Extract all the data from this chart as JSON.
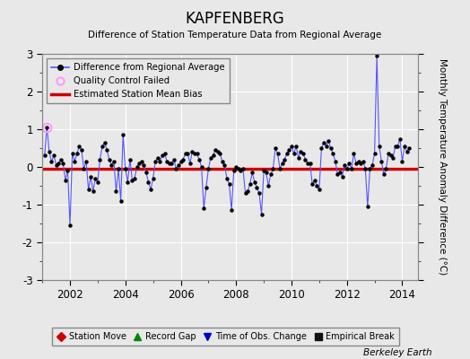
{
  "title": "KAPFENBERG",
  "subtitle": "Difference of Station Temperature Data from Regional Average",
  "ylabel": "Monthly Temperature Anomaly Difference (°C)",
  "xlabel_note": "Berkeley Earth",
  "xlim": [
    2001.0,
    2014.58
  ],
  "ylim": [
    -3,
    3
  ],
  "yticks": [
    -3,
    -2,
    -1,
    0,
    1,
    2,
    3
  ],
  "xticks": [
    2002,
    2004,
    2006,
    2008,
    2010,
    2012,
    2014
  ],
  "bias_value": -0.04,
  "background_color": "#e8e8e8",
  "plot_bg_color": "#e8e8e8",
  "line_color": "#5555ff",
  "bias_color": "#cc0000",
  "qc_color": "#ff99ff",
  "times": [
    2001.083,
    2001.167,
    2001.25,
    2001.333,
    2001.417,
    2001.5,
    2001.583,
    2001.667,
    2001.75,
    2001.833,
    2001.917,
    2002.0,
    2002.083,
    2002.167,
    2002.25,
    2002.333,
    2002.417,
    2002.5,
    2002.583,
    2002.667,
    2002.75,
    2002.833,
    2002.917,
    2003.0,
    2003.083,
    2003.167,
    2003.25,
    2003.333,
    2003.417,
    2003.5,
    2003.583,
    2003.667,
    2003.75,
    2003.833,
    2003.917,
    2004.0,
    2004.083,
    2004.167,
    2004.25,
    2004.333,
    2004.417,
    2004.5,
    2004.583,
    2004.667,
    2004.75,
    2004.833,
    2004.917,
    2005.0,
    2005.083,
    2005.167,
    2005.25,
    2005.333,
    2005.417,
    2005.5,
    2005.583,
    2005.667,
    2005.75,
    2005.833,
    2005.917,
    2006.0,
    2006.083,
    2006.167,
    2006.25,
    2006.333,
    2006.417,
    2006.5,
    2006.583,
    2006.667,
    2006.75,
    2006.833,
    2006.917,
    2007.0,
    2007.083,
    2007.167,
    2007.25,
    2007.333,
    2007.417,
    2007.5,
    2007.583,
    2007.667,
    2007.75,
    2007.833,
    2007.917,
    2008.0,
    2008.083,
    2008.167,
    2008.25,
    2008.333,
    2008.417,
    2008.5,
    2008.583,
    2008.667,
    2008.75,
    2008.833,
    2008.917,
    2009.0,
    2009.083,
    2009.167,
    2009.25,
    2009.333,
    2009.417,
    2009.5,
    2009.583,
    2009.667,
    2009.75,
    2009.833,
    2009.917,
    2010.0,
    2010.083,
    2010.167,
    2010.25,
    2010.333,
    2010.417,
    2010.5,
    2010.583,
    2010.667,
    2010.75,
    2010.833,
    2010.917,
    2011.0,
    2011.083,
    2011.167,
    2011.25,
    2011.333,
    2011.417,
    2011.5,
    2011.583,
    2011.667,
    2011.75,
    2011.833,
    2011.917,
    2012.0,
    2012.083,
    2012.167,
    2012.25,
    2012.333,
    2012.417,
    2012.5,
    2012.583,
    2012.667,
    2012.75,
    2012.833,
    2012.917,
    2013.0,
    2013.083,
    2013.167,
    2013.25,
    2013.333,
    2013.417,
    2013.5,
    2013.583,
    2013.667,
    2013.75,
    2013.833,
    2013.917,
    2014.0,
    2014.083,
    2014.167,
    2014.25
  ],
  "values": [
    0.3,
    1.05,
    0.4,
    0.15,
    0.3,
    0.05,
    0.1,
    0.2,
    0.1,
    -0.35,
    -0.1,
    -1.55,
    0.35,
    0.15,
    0.35,
    0.55,
    0.45,
    -0.05,
    0.15,
    -0.6,
    -0.25,
    -0.65,
    -0.3,
    -0.4,
    0.2,
    0.55,
    0.65,
    0.45,
    0.2,
    0.05,
    0.15,
    -0.65,
    -0.05,
    -0.9,
    0.85,
    -0.05,
    -0.4,
    0.2,
    -0.35,
    -0.3,
    0.0,
    0.1,
    0.15,
    0.05,
    -0.15,
    -0.4,
    -0.6,
    -0.3,
    0.15,
    0.25,
    0.15,
    0.3,
    0.35,
    0.15,
    0.1,
    0.1,
    0.2,
    -0.05,
    0.05,
    0.15,
    0.2,
    0.35,
    0.35,
    0.1,
    0.4,
    0.35,
    0.35,
    0.2,
    0.0,
    -1.1,
    -0.55,
    -0.05,
    0.25,
    0.3,
    0.45,
    0.4,
    0.35,
    0.15,
    0.05,
    -0.3,
    -0.45,
    -1.15,
    -0.1,
    0.0,
    -0.05,
    -0.1,
    -0.05,
    -0.7,
    -0.65,
    -0.45,
    -0.15,
    -0.4,
    -0.55,
    -0.7,
    -1.25,
    -0.1,
    -0.15,
    -0.5,
    -0.2,
    -0.05,
    0.5,
    0.35,
    -0.05,
    0.1,
    0.2,
    0.35,
    0.45,
    0.55,
    0.35,
    0.55,
    0.25,
    0.4,
    0.35,
    0.2,
    0.1,
    0.1,
    -0.45,
    -0.35,
    -0.5,
    -0.6,
    0.5,
    0.65,
    0.55,
    0.7,
    0.5,
    0.35,
    0.15,
    -0.2,
    -0.15,
    -0.25,
    0.05,
    -0.05,
    0.1,
    -0.05,
    0.35,
    0.1,
    0.15,
    0.1,
    0.15,
    -0.05,
    -1.05,
    -0.05,
    0.05,
    0.35,
    2.95,
    0.55,
    0.15,
    -0.2,
    -0.05,
    0.35,
    0.3,
    0.25,
    0.55,
    0.55,
    0.75,
    0.15,
    0.55,
    0.4,
    0.5
  ],
  "qc_failed_times": [
    2001.167
  ],
  "qc_failed_values": [
    1.05
  ],
  "legend1_labels": [
    "Difference from Regional Average",
    "Quality Control Failed",
    "Estimated Station Mean Bias"
  ],
  "legend2_items": [
    {
      "label": "Station Move",
      "color": "#cc0000",
      "marker": "D"
    },
    {
      "label": "Record Gap",
      "color": "#008800",
      "marker": "^"
    },
    {
      "label": "Time of Obs. Change",
      "color": "#0000cc",
      "marker": "v"
    },
    {
      "label": "Empirical Break",
      "color": "#111111",
      "marker": "s"
    }
  ]
}
